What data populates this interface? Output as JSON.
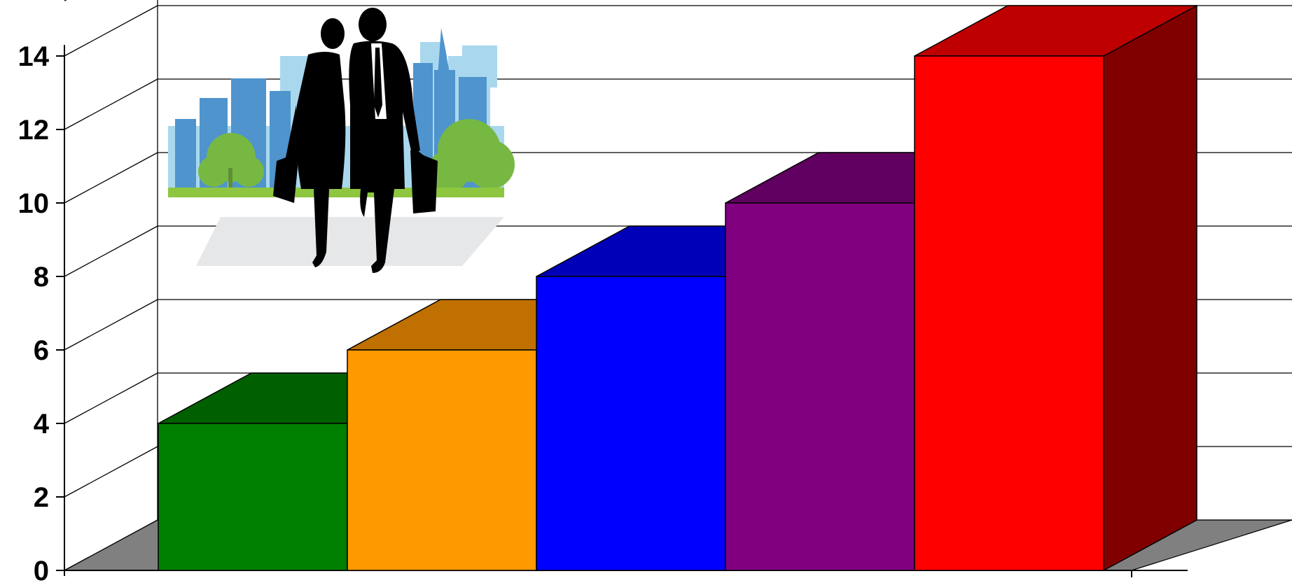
{
  "chart_data": {
    "type": "bar",
    "style": "3d",
    "title": "",
    "xlabel": "",
    "ylabel": "",
    "ylim": [
      0,
      14
    ],
    "y_ticks": [
      "0",
      "2",
      "4",
      "6",
      "8",
      "10",
      "12",
      "14"
    ],
    "grid": true,
    "legend": "none",
    "categories": [
      "",
      "",
      "",
      "",
      ""
    ],
    "values": [
      4,
      6,
      8,
      10,
      14
    ],
    "colors": [
      {
        "front": "#008000",
        "top": "#006000",
        "side": "#004d00"
      },
      {
        "front": "#FF9900",
        "top": "#C07000",
        "side": "#A06000"
      },
      {
        "front": "#0000FF",
        "top": "#0000B8",
        "side": "#00009A"
      },
      {
        "front": "#800080",
        "top": "#600060",
        "side": "#500050"
      },
      {
        "front": "#FF0000",
        "top": "#BF0000",
        "side": "#800000"
      }
    ],
    "floor_color": "#808080"
  },
  "illustration": {
    "name": "businesspeople-city-illustration"
  }
}
